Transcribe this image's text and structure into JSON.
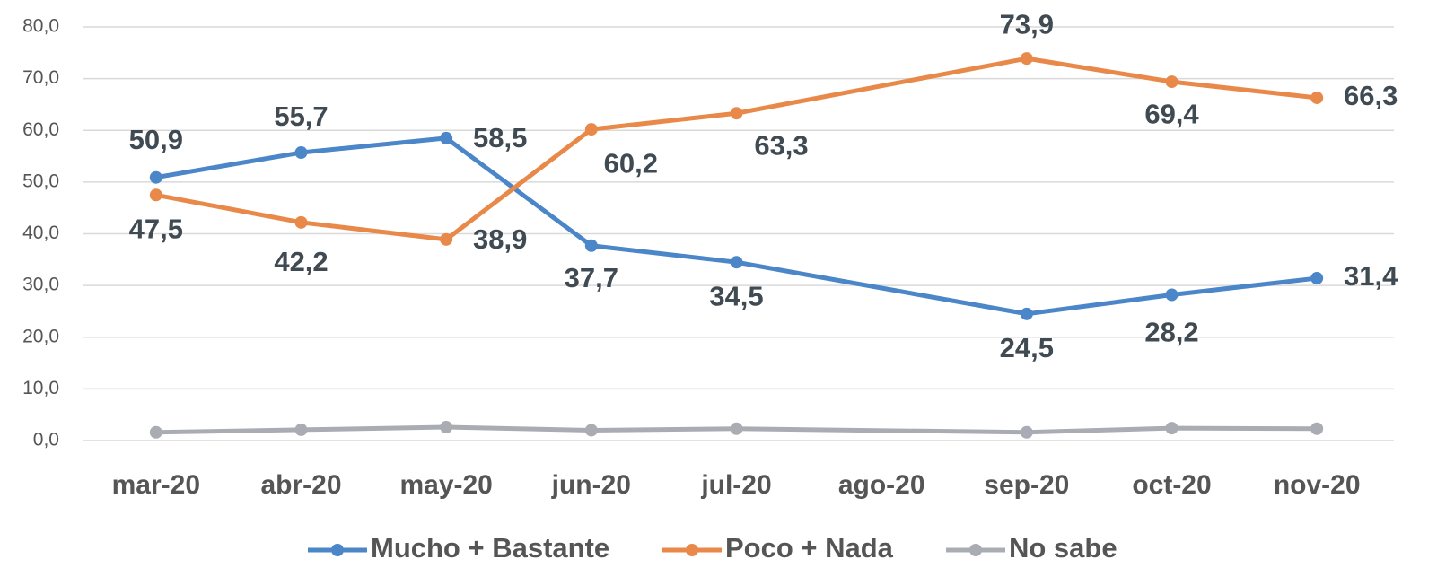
{
  "chart_data": {
    "type": "line",
    "categories": [
      "mar-20",
      "abr-20",
      "may-20",
      "jun-20",
      "jul-20",
      "ago-20",
      "sep-20",
      "oct-20",
      "nov-20"
    ],
    "series": [
      {
        "name": "Mucho + Bastante",
        "color": "#4a86c8",
        "values": [
          50.9,
          55.7,
          58.5,
          37.7,
          34.5,
          null,
          24.5,
          28.2,
          31.4
        ],
        "value_labels": [
          "50,9",
          "55,7",
          "58,5",
          "37,7",
          "34,5",
          null,
          "24,5",
          "28,2",
          "31,4"
        ]
      },
      {
        "name": "Poco + Nada",
        "color": "#e8894a",
        "values": [
          47.5,
          42.2,
          38.9,
          60.2,
          63.3,
          null,
          73.9,
          69.4,
          66.3
        ],
        "value_labels": [
          "47,5",
          "42,2",
          "38,9",
          "60,2",
          "63,3",
          null,
          "73,9",
          "69,4",
          "66,3"
        ]
      },
      {
        "name": "No sabe",
        "color": "#a9adb3",
        "values": [
          1.6,
          2.1,
          2.6,
          2.0,
          2.3,
          null,
          1.6,
          2.4,
          2.3
        ]
      }
    ],
    "ylim": [
      0,
      80
    ],
    "yticks": [
      {
        "value": 0,
        "label": "0,0"
      },
      {
        "value": 10,
        "label": "10,0"
      },
      {
        "value": 20,
        "label": "20,0"
      },
      {
        "value": 30,
        "label": "30,0"
      },
      {
        "value": 40,
        "label": "40,0"
      },
      {
        "value": 50,
        "label": "50,0"
      },
      {
        "value": 60,
        "label": "60,0"
      },
      {
        "value": 70,
        "label": "70,0"
      },
      {
        "value": 80,
        "label": "80,0"
      }
    ],
    "grid": true,
    "legend": "bottom"
  }
}
